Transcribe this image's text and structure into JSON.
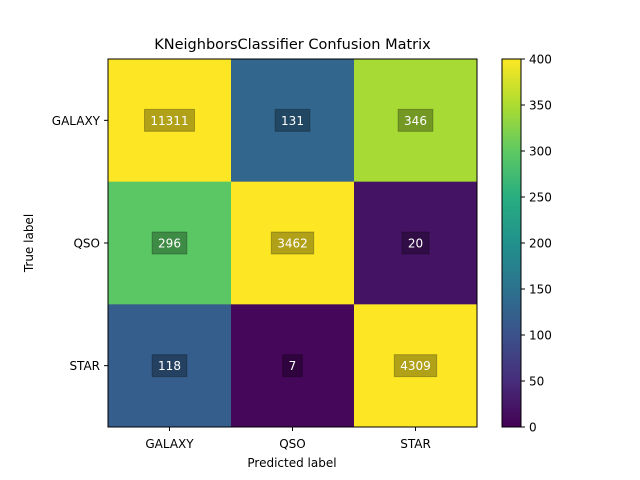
{
  "chart_data": {
    "type": "heatmap",
    "title": "KNeighborsClassifier Confusion Matrix",
    "xlabel": "Predicted label",
    "ylabel": "True label",
    "x_categories": [
      "GALAXY",
      "QSO",
      "STAR"
    ],
    "y_categories": [
      "GALAXY",
      "QSO",
      "STAR"
    ],
    "values": [
      [
        11311,
        131,
        346
      ],
      [
        296,
        3462,
        20
      ],
      [
        118,
        7,
        4309
      ]
    ],
    "value_labels": [
      [
        "11311",
        "131",
        "346"
      ],
      [
        "296",
        "3462",
        "20"
      ],
      [
        "118",
        "7",
        "4309"
      ]
    ],
    "color_range": [
      0,
      400
    ],
    "colormap": "viridis",
    "colorbar_ticks": [
      0,
      50,
      100,
      150,
      200,
      250,
      300,
      350,
      400
    ],
    "colorbar_tick_labels": [
      "0",
      "50",
      "100",
      "150",
      "200",
      "250",
      "300",
      "350",
      "400"
    ],
    "grid": false
  }
}
